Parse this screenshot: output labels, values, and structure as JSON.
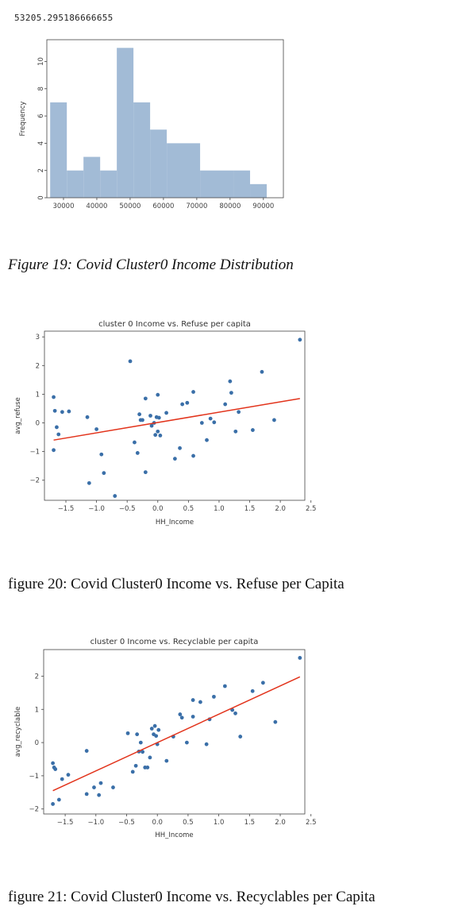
{
  "output_value": "53205.295186666655",
  "captions": {
    "fig19": "Figure 19: Covid Cluster0 Income Distribution",
    "fig20": "figure 20: Covid Cluster0 Income vs. Refuse per Capita",
    "fig21": "figure 21: Covid Cluster0 Income vs. Recyclables per Capita"
  },
  "colors": {
    "bar": "#a2bbd6",
    "point": "#3a6fa8",
    "line": "#e2331b",
    "frame": "#444444"
  },
  "chart_data": [
    {
      "type": "bar",
      "xlabel": "",
      "ylabel": "Frequency",
      "xlim": [
        25000,
        96000
      ],
      "ylim": [
        0,
        11.6
      ],
      "xticks": [
        30000,
        40000,
        50000,
        60000,
        70000,
        80000,
        90000
      ],
      "yticks": [
        0,
        2,
        4,
        6,
        8,
        10
      ],
      "bins": [
        {
          "x0": 26000,
          "x1": 31000,
          "count": 7
        },
        {
          "x0": 31000,
          "x1": 36000,
          "count": 2
        },
        {
          "x0": 36000,
          "x1": 41000,
          "count": 3
        },
        {
          "x0": 41000,
          "x1": 46000,
          "count": 2
        },
        {
          "x0": 46000,
          "x1": 51000,
          "count": 11
        },
        {
          "x0": 51000,
          "x1": 56000,
          "count": 7
        },
        {
          "x0": 56000,
          "x1": 61000,
          "count": 5
        },
        {
          "x0": 61000,
          "x1": 71000,
          "count": 4
        },
        {
          "x0": 71000,
          "x1": 81000,
          "count": 2
        },
        {
          "x0": 81000,
          "x1": 86000,
          "count": 2
        },
        {
          "x0": 86000,
          "x1": 91000,
          "count": 1
        }
      ]
    },
    {
      "type": "scatter",
      "title": "cluster 0 Income vs. Refuse per capita",
      "xlabel": "HH_Income",
      "ylabel": "avg_refuse",
      "xlim": [
        -1.85,
        2.4
      ],
      "ylim": [
        -2.7,
        3.2
      ],
      "xticks": [
        -1.5,
        -1.0,
        -0.5,
        0.0,
        0.5,
        1.0,
        1.5,
        2.0,
        2.5
      ],
      "xtick_labels": [
        "−1.5",
        "−1.0",
        "−0.5",
        "0.0",
        "0.5",
        "1.0",
        "1.5",
        "2.0",
        "2.5"
      ],
      "yticks": [
        -2,
        -1,
        0,
        1,
        2,
        3
      ],
      "ytick_labels": [
        "−2",
        "−1",
        "0",
        "1",
        "2",
        "3"
      ],
      "fit_line": {
        "x": [
          -1.7,
          2.32
        ],
        "y": [
          -0.6,
          0.85
        ]
      },
      "points": [
        [
          -1.7,
          0.9
        ],
        [
          -1.68,
          0.42
        ],
        [
          -1.65,
          -0.15
        ],
        [
          -1.62,
          -0.4
        ],
        [
          -1.56,
          0.38
        ],
        [
          -1.45,
          0.4
        ],
        [
          -1.7,
          -0.95
        ],
        [
          -1.15,
          0.2
        ],
        [
          -1.12,
          -2.1
        ],
        [
          -1.0,
          -0.22
        ],
        [
          -0.92,
          -1.1
        ],
        [
          -0.88,
          -1.75
        ],
        [
          -0.7,
          -2.55
        ],
        [
          -0.45,
          2.15
        ],
        [
          -0.38,
          -0.68
        ],
        [
          -0.33,
          -1.05
        ],
        [
          -0.3,
          0.3
        ],
        [
          -0.28,
          0.1
        ],
        [
          -0.25,
          0.1
        ],
        [
          -0.2,
          0.85
        ],
        [
          -0.2,
          -1.72
        ],
        [
          -0.12,
          0.25
        ],
        [
          -0.1,
          -0.1
        ],
        [
          -0.06,
          0.0
        ],
        [
          -0.04,
          -0.42
        ],
        [
          -0.02,
          0.2
        ],
        [
          0.0,
          0.98
        ],
        [
          0.0,
          -0.3
        ],
        [
          0.02,
          0.18
        ],
        [
          0.04,
          -0.44
        ],
        [
          0.14,
          0.35
        ],
        [
          0.28,
          -1.25
        ],
        [
          0.36,
          -0.88
        ],
        [
          0.4,
          0.65
        ],
        [
          0.48,
          0.7
        ],
        [
          0.58,
          1.08
        ],
        [
          0.58,
          -1.15
        ],
        [
          0.72,
          0.0
        ],
        [
          0.8,
          -0.6
        ],
        [
          0.86,
          0.15
        ],
        [
          0.92,
          0.02
        ],
        [
          1.1,
          0.65
        ],
        [
          1.18,
          1.45
        ],
        [
          1.2,
          1.05
        ],
        [
          1.27,
          -0.3
        ],
        [
          1.32,
          0.38
        ],
        [
          1.55,
          -0.25
        ],
        [
          1.7,
          1.78
        ],
        [
          1.9,
          0.1
        ],
        [
          2.32,
          2.9
        ]
      ]
    },
    {
      "type": "scatter",
      "title": "cluster 0 Income vs. Recyclable per capita",
      "xlabel": "HH_Income",
      "ylabel": "avg_recyclable",
      "xlim": [
        -1.85,
        2.4
      ],
      "ylim": [
        -2.15,
        2.8
      ],
      "xticks": [
        -1.5,
        -1.0,
        -0.5,
        0.0,
        0.5,
        1.0,
        1.5,
        2.0,
        2.5
      ],
      "xtick_labels": [
        "−1.5",
        "−1.0",
        "−0.5",
        "0.0",
        "0.5",
        "1.0",
        "1.5",
        "2.0",
        "2.5"
      ],
      "yticks": [
        -2,
        -1,
        0,
        1,
        2
      ],
      "ytick_labels": [
        "−2",
        "−1",
        "0",
        "1",
        "2"
      ],
      "fit_line": {
        "x": [
          -1.7,
          2.32
        ],
        "y": [
          -1.45,
          1.98
        ]
      },
      "points": [
        [
          -1.7,
          -0.62
        ],
        [
          -1.68,
          -0.75
        ],
        [
          -1.66,
          -0.8
        ],
        [
          -1.6,
          -1.72
        ],
        [
          -1.55,
          -1.1
        ],
        [
          -1.45,
          -0.97
        ],
        [
          -1.7,
          -1.85
        ],
        [
          -1.15,
          -0.25
        ],
        [
          -1.15,
          -1.55
        ],
        [
          -1.03,
          -1.35
        ],
        [
          -0.95,
          -1.58
        ],
        [
          -0.92,
          -1.22
        ],
        [
          -0.72,
          -1.35
        ],
        [
          -0.48,
          0.28
        ],
        [
          -0.4,
          -0.88
        ],
        [
          -0.35,
          -0.7
        ],
        [
          -0.33,
          0.25
        ],
        [
          -0.3,
          -0.27
        ],
        [
          -0.27,
          0.0
        ],
        [
          -0.24,
          -0.28
        ],
        [
          -0.2,
          -0.75
        ],
        [
          -0.16,
          -0.75
        ],
        [
          -0.12,
          -0.45
        ],
        [
          -0.09,
          0.42
        ],
        [
          -0.06,
          0.25
        ],
        [
          -0.04,
          0.5
        ],
        [
          -0.02,
          0.2
        ],
        [
          0.0,
          -0.05
        ],
        [
          0.02,
          0.38
        ],
        [
          0.15,
          -0.55
        ],
        [
          0.26,
          0.18
        ],
        [
          0.37,
          0.85
        ],
        [
          0.4,
          0.75
        ],
        [
          0.48,
          0.0
        ],
        [
          0.58,
          1.28
        ],
        [
          0.58,
          0.78
        ],
        [
          0.7,
          1.22
        ],
        [
          0.8,
          -0.05
        ],
        [
          0.85,
          0.7
        ],
        [
          0.92,
          1.38
        ],
        [
          1.1,
          1.7
        ],
        [
          1.22,
          0.98
        ],
        [
          1.27,
          0.88
        ],
        [
          1.35,
          0.18
        ],
        [
          1.55,
          1.55
        ],
        [
          1.72,
          1.8
        ],
        [
          1.92,
          0.62
        ],
        [
          2.32,
          2.55
        ]
      ]
    }
  ]
}
